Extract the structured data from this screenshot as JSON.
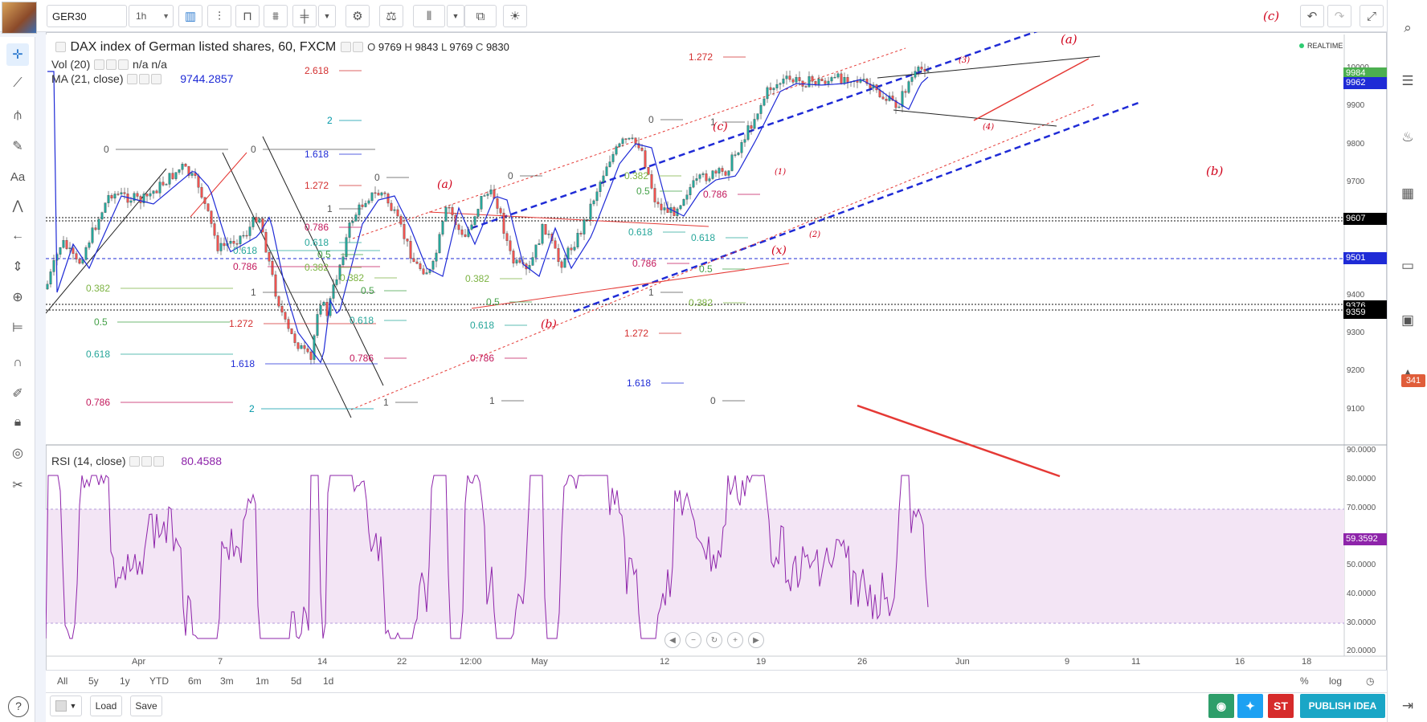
{
  "toolbar": {
    "symbol": "GER30",
    "interval": "1h",
    "wave_label_top": "(c)",
    "icons": [
      "candles-icon",
      "indicators-icon",
      "compare-icon",
      "templates-icon",
      "bar-replay-icon",
      "settings-icon",
      "scales-icon",
      "chart-type-icon",
      "share-icon",
      "ideas-icon",
      "undo-icon",
      "redo-icon",
      "fullscreen-icon"
    ]
  },
  "legend": {
    "title": "DAX index of German listed shares, 60, FXCM",
    "ohlc": {
      "o_label": "O",
      "o": "9769",
      "h_label": "H",
      "h": "9843",
      "l_label": "L",
      "l": "9769",
      "c_label": "C",
      "c": "9830"
    },
    "vol_label": "Vol (20)",
    "vol_value1": "n/a",
    "vol_value2": "n/a",
    "ma_label": "MA (21, close)",
    "ma_value": "9744.2857",
    "rsi_label": "RSI (14, close)",
    "rsi_value": "80.4588",
    "realtime": "REALTIME"
  },
  "price_scale": {
    "labels": [
      "10000",
      "9900",
      "9800",
      "9700",
      "9400",
      "9300",
      "9200",
      "9100"
    ],
    "tags": [
      {
        "value": "9984",
        "color": "#4caf50"
      },
      {
        "value": "9962",
        "color": "#1f2bd6"
      },
      {
        "value": "9607",
        "color": "#000000"
      },
      {
        "value": "9501",
        "color": "#1f2bd6"
      },
      {
        "value": "9376",
        "color": "#000000"
      },
      {
        "value": "9359",
        "color": "#000000"
      }
    ]
  },
  "rsi_scale": {
    "labels": [
      "90.0000",
      "80.0000",
      "70.0000",
      "50.0000",
      "40.0000",
      "30.0000",
      "20.0000"
    ],
    "current_tag": "59.3592",
    "tag_color": "#8e24aa"
  },
  "time_axis": [
    "Apr",
    "7",
    "14",
    "22",
    "12:00",
    "May",
    "12",
    "19",
    "26",
    "Jun",
    "9",
    "11",
    "16",
    "18"
  ],
  "ranges": [
    "All",
    "5y",
    "1y",
    "YTD",
    "6m",
    "3m",
    "1m",
    "5d",
    "1d"
  ],
  "scale_opts": {
    "percent": "%",
    "log": "log"
  },
  "bottom": {
    "load": "Load",
    "save": "Save",
    "st": "ST",
    "publish": "PUBLISH IDEA"
  },
  "badge_count": "341",
  "fib_levels": [
    {
      "text": "0",
      "color": "#555555"
    },
    {
      "text": "0",
      "color": "#555555"
    },
    {
      "text": "0.382",
      "color": "#7cb342"
    },
    {
      "text": "0.5",
      "color": "#43a047"
    },
    {
      "text": "0.618",
      "color": "#26a69a"
    },
    {
      "text": "0.786",
      "color": "#c2185b"
    },
    {
      "text": "0.618",
      "color": "#26a69a"
    },
    {
      "text": "0.786",
      "color": "#c2185b"
    },
    {
      "text": "1",
      "color": "#555555"
    },
    {
      "text": "1.272",
      "color": "#d32f2f"
    },
    {
      "text": "1.618",
      "color": "#1f2bd6"
    },
    {
      "text": "2",
      "color": "#0097a7"
    },
    {
      "text": "2.618",
      "color": "#d32f2f"
    },
    {
      "text": "2",
      "color": "#0097a7"
    },
    {
      "text": "1.618",
      "color": "#1f2bd6"
    },
    {
      "text": "1.272",
      "color": "#d32f2f"
    },
    {
      "text": "1",
      "color": "#555555"
    },
    {
      "text": "0.786",
      "color": "#c2185b"
    },
    {
      "text": "0.618",
      "color": "#26a69a"
    },
    {
      "text": "0.5",
      "color": "#43a047"
    },
    {
      "text": "0.382",
      "color": "#7cb342"
    },
    {
      "text": "0",
      "color": "#555555"
    },
    {
      "text": "0.382",
      "color": "#7cb342"
    },
    {
      "text": "0.5",
      "color": "#43a047"
    },
    {
      "text": "0.618",
      "color": "#26a69a"
    },
    {
      "text": "0.786",
      "color": "#c2185b"
    },
    {
      "text": "1",
      "color": "#555555"
    },
    {
      "text": "0",
      "color": "#555555"
    },
    {
      "text": "0.382",
      "color": "#7cb342"
    },
    {
      "text": "0.5",
      "color": "#43a047"
    },
    {
      "text": "0.618",
      "color": "#26a69a"
    },
    {
      "text": "0.786",
      "color": "#c2185b"
    },
    {
      "text": "1",
      "color": "#555555"
    },
    {
      "text": "0",
      "color": "#555555"
    },
    {
      "text": "0.382",
      "color": "#7cb342"
    },
    {
      "text": "0.5",
      "color": "#43a047"
    },
    {
      "text": "0.618",
      "color": "#26a69a"
    },
    {
      "text": "0.786",
      "color": "#c2185b"
    },
    {
      "text": "1",
      "color": "#555555"
    },
    {
      "text": "1.272",
      "color": "#d32f2f"
    },
    {
      "text": "1.618",
      "color": "#1f2bd6"
    },
    {
      "text": "1.272",
      "color": "#d32f2f"
    },
    {
      "text": "1",
      "color": "#555555"
    },
    {
      "text": "0.786",
      "color": "#c2185b"
    },
    {
      "text": "0.618",
      "color": "#26a69a"
    },
    {
      "text": "0.5",
      "color": "#43a047"
    },
    {
      "text": "0.382",
      "color": "#7cb342"
    },
    {
      "text": "0",
      "color": "#555555"
    }
  ],
  "wave_labels": [
    "(a)",
    "(b)",
    "(c)",
    "(x)",
    "(1)",
    "(2)",
    "(3)",
    "(4)",
    "(a)",
    "(b)"
  ],
  "colors": {
    "candle_up": "#26a69a",
    "candle_down": "#ef5350",
    "ma": "#1f2bd6",
    "rsi": "#8e24aa",
    "rsi_band": "#f3e5f5",
    "trend_red": "#e53935",
    "channel_blue": "#1f2bd6"
  }
}
